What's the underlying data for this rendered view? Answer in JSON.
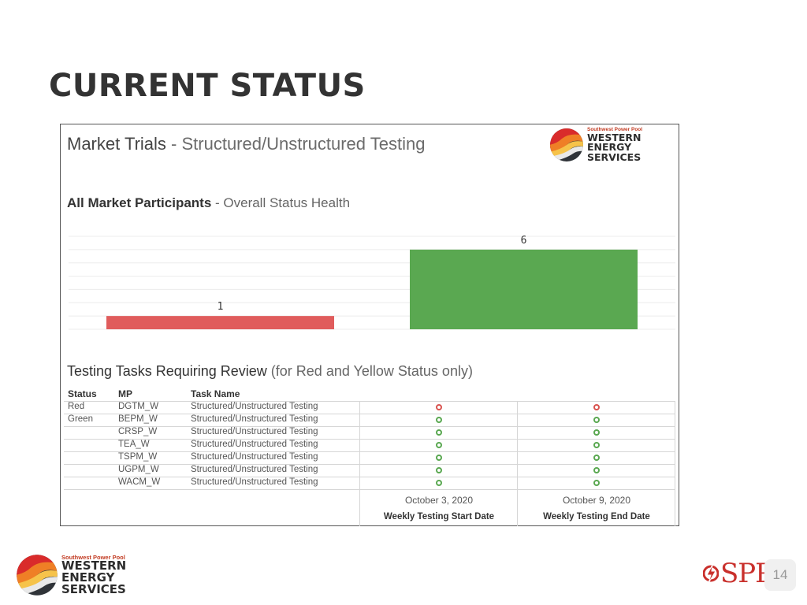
{
  "slide": {
    "title": "CURRENT STATUS",
    "page_number": "14"
  },
  "dashboard": {
    "title_main": "Market Trials",
    "title_sep": " - ",
    "title_sub": "Structured/Unstructured Testing",
    "logo": {
      "tagline": "Southwest Power Pool",
      "line1": "WESTERN",
      "line2": "ENERGY",
      "line3": "SERVICES"
    },
    "health": {
      "title_main": "All Market Participants",
      "title_sep": " - ",
      "title_sub": "Overall Status Health"
    },
    "review": {
      "title_main": "Testing Tasks Requiring Review",
      "title_sub": " (for Red and Yellow Status only)",
      "columns": {
        "status": "Status",
        "mp": "MP",
        "task": "Task Name"
      },
      "rows": [
        {
          "status": "Red",
          "mp": "DGTM_W",
          "task": "Structured/Unstructured Testing",
          "start_color": "#d9534f",
          "end_color": "#d9534f"
        },
        {
          "status": "Green",
          "mp": "BEPM_W",
          "task": "Structured/Unstructured Testing",
          "start_color": "#5aa851",
          "end_color": "#5aa851"
        },
        {
          "status": "",
          "mp": "CRSP_W",
          "task": "Structured/Unstructured Testing",
          "start_color": "#5aa851",
          "end_color": "#5aa851"
        },
        {
          "status": "",
          "mp": "TEA_W",
          "task": "Structured/Unstructured Testing",
          "start_color": "#5aa851",
          "end_color": "#5aa851"
        },
        {
          "status": "",
          "mp": "TSPM_W",
          "task": "Structured/Unstructured Testing",
          "start_color": "#5aa851",
          "end_color": "#5aa851"
        },
        {
          "status": "",
          "mp": "UGPM_W",
          "task": "Structured/Unstructured Testing",
          "start_color": "#5aa851",
          "end_color": "#5aa851"
        },
        {
          "status": "",
          "mp": "WACM_W",
          "task": "Structured/Unstructured Testing",
          "start_color": "#5aa851",
          "end_color": "#5aa851"
        }
      ],
      "start_date": "October 3, 2020",
      "end_date": "October 9, 2020",
      "start_label": "Weekly Testing Start Date",
      "end_label": "Weekly Testing End Date"
    }
  },
  "footer": {
    "logo": {
      "tagline": "Southwest Power Pool",
      "line1": "WESTERN",
      "line2": "ENERGY",
      "line3": "SERVICES"
    },
    "spp_text": "SPP"
  },
  "chart_data": {
    "type": "bar",
    "title": "All Market Participants - Overall Status Health",
    "categories": [
      "Red",
      "Green"
    ],
    "values": [
      1,
      6
    ],
    "colors": [
      "#e05c5c",
      "#5aa851"
    ],
    "ylim": [
      0,
      7
    ],
    "xlabel": "",
    "ylabel": ""
  }
}
